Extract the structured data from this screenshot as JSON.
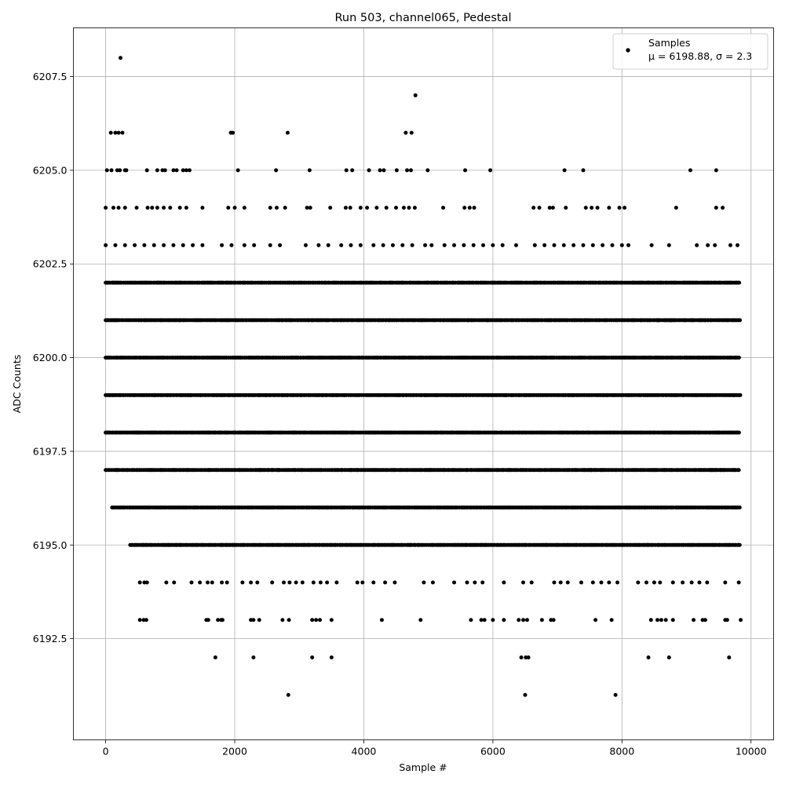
{
  "chart_data": {
    "type": "scatter",
    "title": "Run 503, channel065, Pedestal",
    "xlabel": "Sample #",
    "ylabel": "ADC Counts",
    "xlim": [
      -500,
      10350
    ],
    "ylim": [
      6189.8,
      6208.8
    ],
    "xticks": [
      0,
      2000,
      4000,
      6000,
      8000,
      10000
    ],
    "xtick_labels": [
      "0",
      "2000",
      "4000",
      "6000",
      "8000",
      "10000"
    ],
    "yticks": [
      6192.5,
      6195.0,
      6197.5,
      6200.0,
      6202.5,
      6205.0,
      6207.5
    ],
    "ytick_labels": [
      "6192.5",
      "6195.0",
      "6197.5",
      "6200.0",
      "6202.5",
      "6205.0",
      "6207.5"
    ],
    "grid": true,
    "legend": {
      "placement": "top-right",
      "entries": [
        "Samples",
        "μ = 6198.88, σ = 2.3"
      ]
    },
    "marker_color": "#000000",
    "series": [
      {
        "name": "Samples",
        "dense_levels": [
          {
            "y": 6202,
            "x_range": [
              0,
              9840
            ]
          },
          {
            "y": 6201,
            "x_range": [
              0,
              9840
            ]
          },
          {
            "y": 6200,
            "x_range": [
              0,
              9840
            ]
          },
          {
            "y": 6199,
            "x_range": [
              0,
              9840
            ]
          },
          {
            "y": 6198,
            "x_range": [
              0,
              9840
            ]
          },
          {
            "y": 6197,
            "x_range": [
              0,
              9840
            ]
          },
          {
            "y": 6196,
            "x_range": [
              100,
              9840
            ]
          },
          {
            "y": 6195,
            "x_range": [
              380,
              9840
            ]
          }
        ],
        "points": [
          [
            230,
            6208
          ],
          [
            4800,
            6207
          ],
          [
            80,
            6206
          ],
          [
            150,
            6206
          ],
          [
            200,
            6206
          ],
          [
            260,
            6206
          ],
          [
            1940,
            6206
          ],
          [
            1970,
            6206
          ],
          [
            2820,
            6206
          ],
          [
            4650,
            6206
          ],
          [
            4740,
            6206
          ],
          [
            20,
            6205
          ],
          [
            90,
            6205
          ],
          [
            180,
            6205
          ],
          [
            220,
            6205
          ],
          [
            300,
            6205
          ],
          [
            320,
            6205
          ],
          [
            640,
            6205
          ],
          [
            800,
            6205
          ],
          [
            880,
            6205
          ],
          [
            920,
            6205
          ],
          [
            1050,
            6205
          ],
          [
            1100,
            6205
          ],
          [
            1200,
            6205
          ],
          [
            1250,
            6205
          ],
          [
            1300,
            6205
          ],
          [
            2050,
            6205
          ],
          [
            2640,
            6205
          ],
          [
            3160,
            6205
          ],
          [
            3730,
            6205
          ],
          [
            3820,
            6205
          ],
          [
            4080,
            6205
          ],
          [
            4250,
            6205
          ],
          [
            4310,
            6205
          ],
          [
            4510,
            6205
          ],
          [
            4670,
            6205
          ],
          [
            4730,
            6205
          ],
          [
            4990,
            6205
          ],
          [
            5570,
            6205
          ],
          [
            5960,
            6205
          ],
          [
            7110,
            6205
          ],
          [
            7400,
            6205
          ],
          [
            9060,
            6205
          ],
          [
            9460,
            6205
          ],
          [
            0,
            6204
          ],
          [
            120,
            6204
          ],
          [
            200,
            6204
          ],
          [
            300,
            6204
          ],
          [
            480,
            6204
          ],
          [
            650,
            6204
          ],
          [
            720,
            6204
          ],
          [
            800,
            6204
          ],
          [
            900,
            6204
          ],
          [
            1000,
            6204
          ],
          [
            1150,
            6204
          ],
          [
            1250,
            6204
          ],
          [
            1500,
            6204
          ],
          [
            1900,
            6204
          ],
          [
            2000,
            6204
          ],
          [
            2150,
            6204
          ],
          [
            2550,
            6204
          ],
          [
            2650,
            6204
          ],
          [
            2780,
            6204
          ],
          [
            3120,
            6204
          ],
          [
            3170,
            6204
          ],
          [
            3480,
            6204
          ],
          [
            3720,
            6204
          ],
          [
            3790,
            6204
          ],
          [
            3950,
            6204
          ],
          [
            4050,
            6204
          ],
          [
            4200,
            6204
          ],
          [
            4350,
            6204
          ],
          [
            4500,
            6204
          ],
          [
            4620,
            6204
          ],
          [
            4700,
            6204
          ],
          [
            4790,
            6204
          ],
          [
            5230,
            6204
          ],
          [
            5560,
            6204
          ],
          [
            5640,
            6204
          ],
          [
            5710,
            6204
          ],
          [
            6630,
            6204
          ],
          [
            6720,
            6204
          ],
          [
            6880,
            6204
          ],
          [
            6930,
            6204
          ],
          [
            7130,
            6204
          ],
          [
            7440,
            6204
          ],
          [
            7530,
            6204
          ],
          [
            7620,
            6204
          ],
          [
            7800,
            6204
          ],
          [
            7960,
            6204
          ],
          [
            8040,
            6204
          ],
          [
            8840,
            6204
          ],
          [
            9460,
            6204
          ],
          [
            9560,
            6204
          ],
          [
            0,
            6203
          ],
          [
            150,
            6203
          ],
          [
            300,
            6203
          ],
          [
            450,
            6203
          ],
          [
            600,
            6203
          ],
          [
            750,
            6203
          ],
          [
            900,
            6203
          ],
          [
            1050,
            6203
          ],
          [
            1200,
            6203
          ],
          [
            1350,
            6203
          ],
          [
            1500,
            6203
          ],
          [
            1800,
            6203
          ],
          [
            1950,
            6203
          ],
          [
            2150,
            6203
          ],
          [
            2300,
            6203
          ],
          [
            2550,
            6203
          ],
          [
            2700,
            6203
          ],
          [
            3100,
            6203
          ],
          [
            3300,
            6203
          ],
          [
            3450,
            6203
          ],
          [
            3650,
            6203
          ],
          [
            3800,
            6203
          ],
          [
            3950,
            6203
          ],
          [
            4150,
            6203
          ],
          [
            4300,
            6203
          ],
          [
            4450,
            6203
          ],
          [
            4600,
            6203
          ],
          [
            4750,
            6203
          ],
          [
            4950,
            6203
          ],
          [
            5050,
            6203
          ],
          [
            5250,
            6203
          ],
          [
            5400,
            6203
          ],
          [
            5550,
            6203
          ],
          [
            5700,
            6203
          ],
          [
            5850,
            6203
          ],
          [
            6000,
            6203
          ],
          [
            6150,
            6203
          ],
          [
            6360,
            6203
          ],
          [
            6650,
            6203
          ],
          [
            6800,
            6203
          ],
          [
            6950,
            6203
          ],
          [
            7100,
            6203
          ],
          [
            7250,
            6203
          ],
          [
            7400,
            6203
          ],
          [
            7550,
            6203
          ],
          [
            7700,
            6203
          ],
          [
            7850,
            6203
          ],
          [
            8000,
            6203
          ],
          [
            8100,
            6203
          ],
          [
            8460,
            6203
          ],
          [
            8730,
            6203
          ],
          [
            9160,
            6203
          ],
          [
            9330,
            6203
          ],
          [
            9440,
            6203
          ],
          [
            9680,
            6203
          ],
          [
            9790,
            6203
          ],
          [
            530,
            6194
          ],
          [
            600,
            6194
          ],
          [
            640,
            6194
          ],
          [
            940,
            6194
          ],
          [
            1060,
            6194
          ],
          [
            1330,
            6194
          ],
          [
            1460,
            6194
          ],
          [
            1580,
            6194
          ],
          [
            1650,
            6194
          ],
          [
            1800,
            6194
          ],
          [
            1880,
            6194
          ],
          [
            2120,
            6194
          ],
          [
            2250,
            6194
          ],
          [
            2350,
            6194
          ],
          [
            2580,
            6194
          ],
          [
            2760,
            6194
          ],
          [
            2850,
            6194
          ],
          [
            2950,
            6194
          ],
          [
            3050,
            6194
          ],
          [
            3220,
            6194
          ],
          [
            3330,
            6194
          ],
          [
            3430,
            6194
          ],
          [
            3580,
            6194
          ],
          [
            3900,
            6194
          ],
          [
            3980,
            6194
          ],
          [
            4150,
            6194
          ],
          [
            4330,
            6194
          ],
          [
            4480,
            6194
          ],
          [
            4930,
            6194
          ],
          [
            5070,
            6194
          ],
          [
            5400,
            6194
          ],
          [
            5600,
            6194
          ],
          [
            5720,
            6194
          ],
          [
            5840,
            6194
          ],
          [
            6170,
            6194
          ],
          [
            6470,
            6194
          ],
          [
            6600,
            6194
          ],
          [
            6950,
            6194
          ],
          [
            7050,
            6194
          ],
          [
            7160,
            6194
          ],
          [
            7370,
            6194
          ],
          [
            7550,
            6194
          ],
          [
            7680,
            6194
          ],
          [
            7800,
            6194
          ],
          [
            7930,
            6194
          ],
          [
            8250,
            6194
          ],
          [
            8380,
            6194
          ],
          [
            8500,
            6194
          ],
          [
            8590,
            6194
          ],
          [
            8790,
            6194
          ],
          [
            8940,
            6194
          ],
          [
            9080,
            6194
          ],
          [
            9200,
            6194
          ],
          [
            9320,
            6194
          ],
          [
            9600,
            6194
          ],
          [
            9810,
            6194
          ],
          [
            530,
            6193
          ],
          [
            590,
            6193
          ],
          [
            630,
            6193
          ],
          [
            1560,
            6193
          ],
          [
            1590,
            6193
          ],
          [
            1740,
            6193
          ],
          [
            1790,
            6193
          ],
          [
            1810,
            6193
          ],
          [
            2250,
            6193
          ],
          [
            2290,
            6193
          ],
          [
            2380,
            6193
          ],
          [
            2740,
            6193
          ],
          [
            2840,
            6193
          ],
          [
            3200,
            6193
          ],
          [
            3260,
            6193
          ],
          [
            3320,
            6193
          ],
          [
            3500,
            6193
          ],
          [
            4280,
            6193
          ],
          [
            4880,
            6193
          ],
          [
            5660,
            6193
          ],
          [
            5820,
            6193
          ],
          [
            5870,
            6193
          ],
          [
            6000,
            6193
          ],
          [
            6170,
            6193
          ],
          [
            6400,
            6193
          ],
          [
            6470,
            6193
          ],
          [
            6530,
            6193
          ],
          [
            6760,
            6193
          ],
          [
            6900,
            6193
          ],
          [
            6940,
            6193
          ],
          [
            7590,
            6193
          ],
          [
            7840,
            6193
          ],
          [
            8450,
            6193
          ],
          [
            8550,
            6193
          ],
          [
            8610,
            6193
          ],
          [
            8680,
            6193
          ],
          [
            8790,
            6193
          ],
          [
            9110,
            6193
          ],
          [
            9250,
            6193
          ],
          [
            9290,
            6193
          ],
          [
            9600,
            6193
          ],
          [
            9630,
            6193
          ],
          [
            9840,
            6193
          ],
          [
            1700,
            6192
          ],
          [
            2290,
            6192
          ],
          [
            3200,
            6192
          ],
          [
            3500,
            6192
          ],
          [
            6440,
            6192
          ],
          [
            6510,
            6192
          ],
          [
            6550,
            6192
          ],
          [
            8410,
            6192
          ],
          [
            8730,
            6192
          ],
          [
            9660,
            6192
          ],
          [
            2830,
            6191
          ],
          [
            6500,
            6191
          ],
          [
            7900,
            6191
          ]
        ]
      }
    ]
  }
}
